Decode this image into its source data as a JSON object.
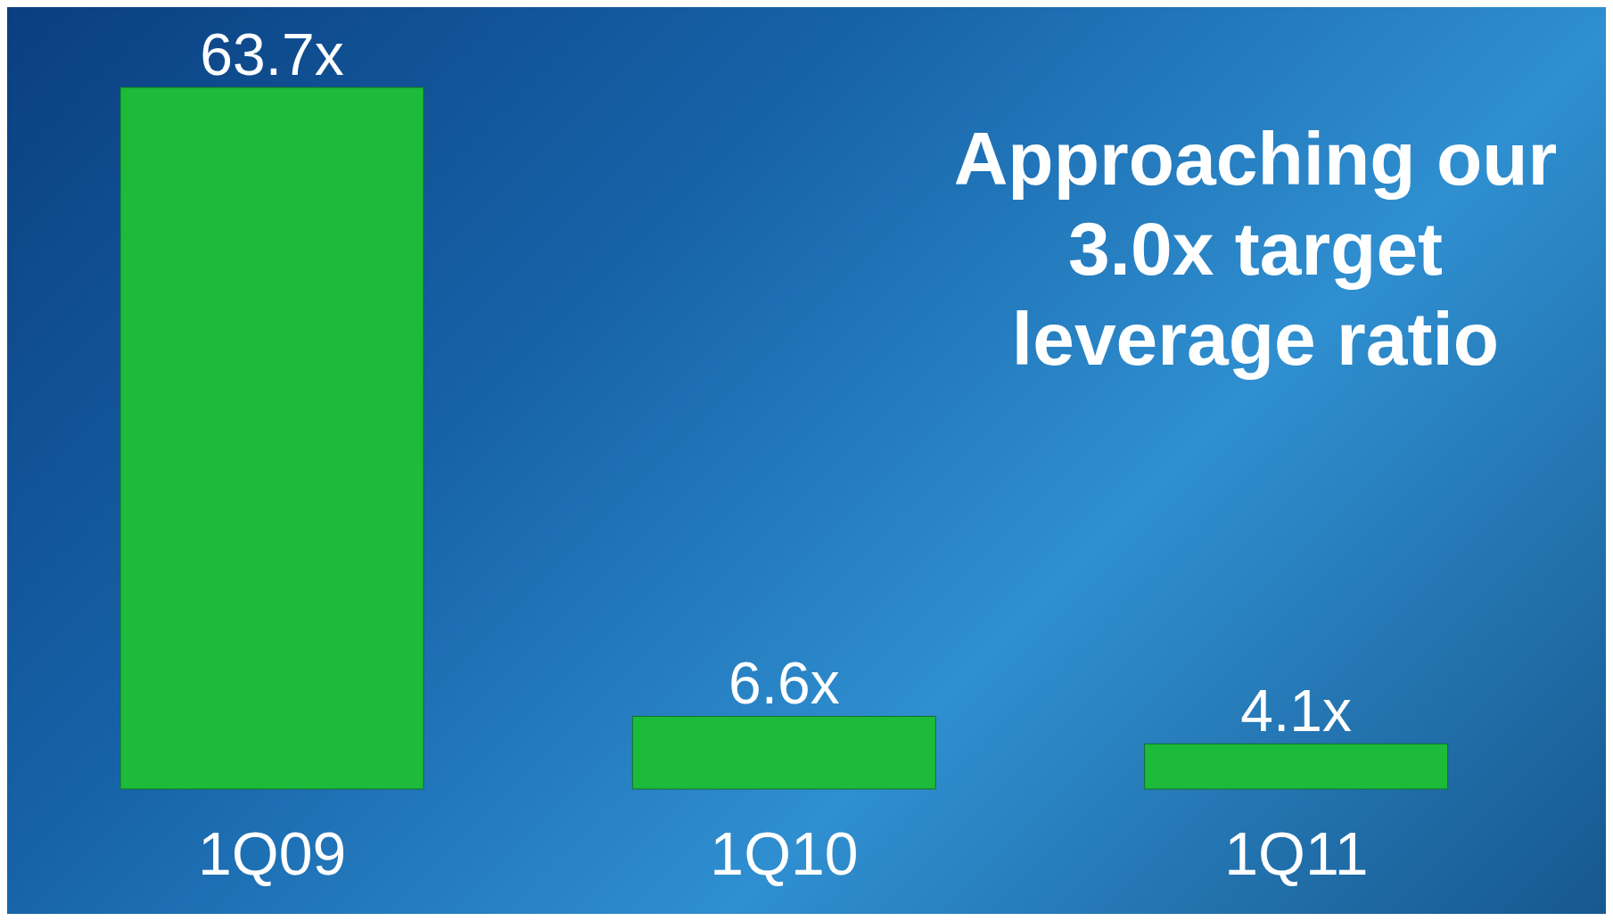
{
  "chart_data": {
    "type": "bar",
    "categories": [
      "1Q09",
      "1Q10",
      "1Q11"
    ],
    "values": [
      63.7,
      6.6,
      4.1
    ],
    "value_labels": [
      "63.7x",
      "6.6x",
      "4.1x"
    ],
    "color": "#1cbb3a",
    "annotations": [
      "Approaching our 3.0x target leverage ratio"
    ],
    "grid": false,
    "legend": false
  }
}
